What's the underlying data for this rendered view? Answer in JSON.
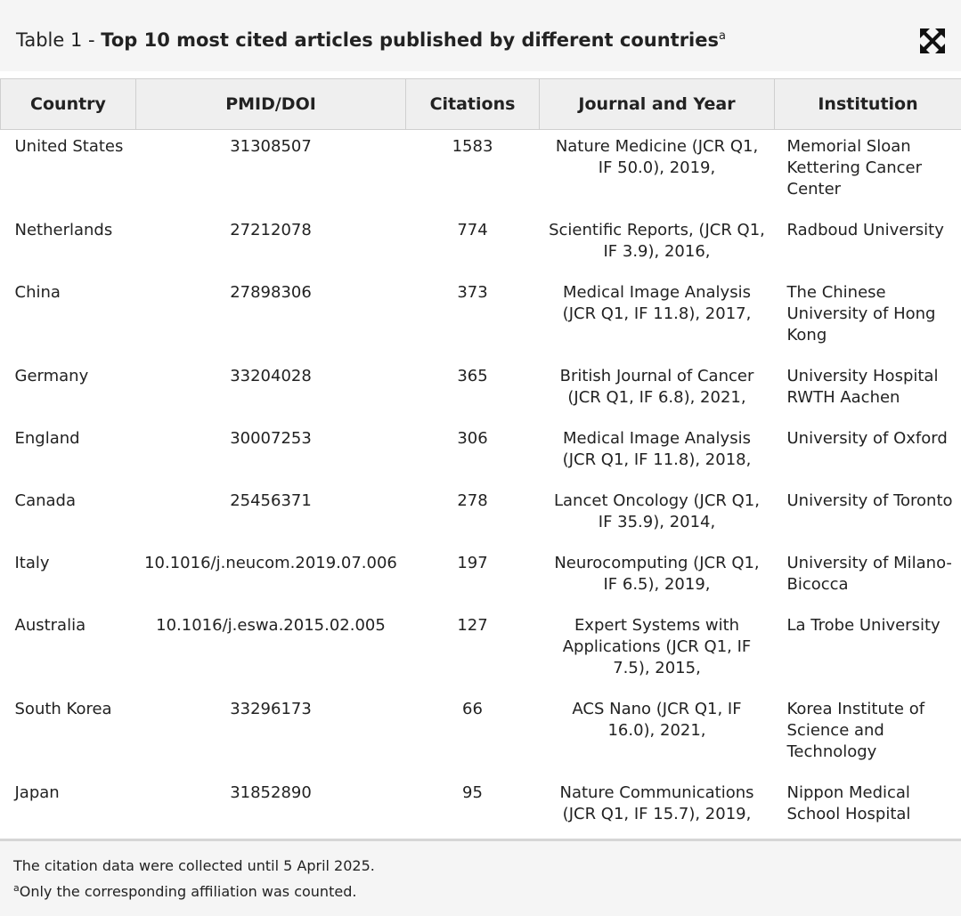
{
  "caption": {
    "label": "Table 1 - ",
    "title": "Top 10 most cited articles published by different countries",
    "marker": "a"
  },
  "icons": {
    "expand": "expand-arrows-icon"
  },
  "table": {
    "headers": [
      "Country",
      "PMID/DOI",
      "Citations",
      "Journal and Year",
      "Institution"
    ],
    "rows": [
      {
        "country": "United States",
        "id": "31308507",
        "citations": "1583",
        "journal": "Nature Medicine (JCR Q1, IF 50.0), 2019,",
        "institution": "Memorial Sloan Kettering Cancer Center"
      },
      {
        "country": "Netherlands",
        "id": "27212078",
        "citations": "774",
        "journal": "Scientific Reports, (JCR Q1, IF 3.9), 2016,",
        "institution": "Radboud University"
      },
      {
        "country": "China",
        "id": "27898306",
        "citations": "373",
        "journal": "Medical Image Analysis (JCR Q1, IF 11.8), 2017,",
        "institution": "The Chinese University of Hong Kong"
      },
      {
        "country": "Germany",
        "id": "33204028",
        "citations": "365",
        "journal": "British Journal of Cancer (JCR Q1, IF 6.8), 2021,",
        "institution": "University Hospital RWTH Aachen"
      },
      {
        "country": "England",
        "id": "30007253",
        "citations": "306",
        "journal": "Medical Image Analysis (JCR Q1, IF 11.8), 2018,",
        "institution": "University of Oxford"
      },
      {
        "country": "Canada",
        "id": "25456371",
        "citations": "278",
        "journal": "Lancet Oncology (JCR Q1, IF 35.9), 2014,",
        "institution": "University of Toronto"
      },
      {
        "country": "Italy",
        "id": "10.1016/j.neucom.2019.07.006",
        "citations": "197",
        "journal": "Neurocomputing (JCR Q1, IF 6.5), 2019,",
        "institution": "University of Milano-Bicocca"
      },
      {
        "country": "Australia",
        "id": "10.1016/j.eswa.2015.02.005",
        "citations": "127",
        "journal": "Expert Systems with Applications (JCR Q1, IF 7.5), 2015,",
        "institution": "La Trobe University"
      },
      {
        "country": "South Korea",
        "id": "33296173",
        "citations": "66",
        "journal": "ACS Nano (JCR Q1, IF 16.0), 2021,",
        "institution": "Korea Institute of Science and Technology"
      },
      {
        "country": "Japan",
        "id": "31852890",
        "citations": "95",
        "journal": "Nature Communications (JCR Q1, IF 15.7), 2019,",
        "institution": "Nippon Medical School Hospital"
      }
    ]
  },
  "footnotes": {
    "note1": "The citation data were collected until 5 April 2025.",
    "note2_marker": "a",
    "note2": "Only the corresponding affiliation was counted."
  }
}
